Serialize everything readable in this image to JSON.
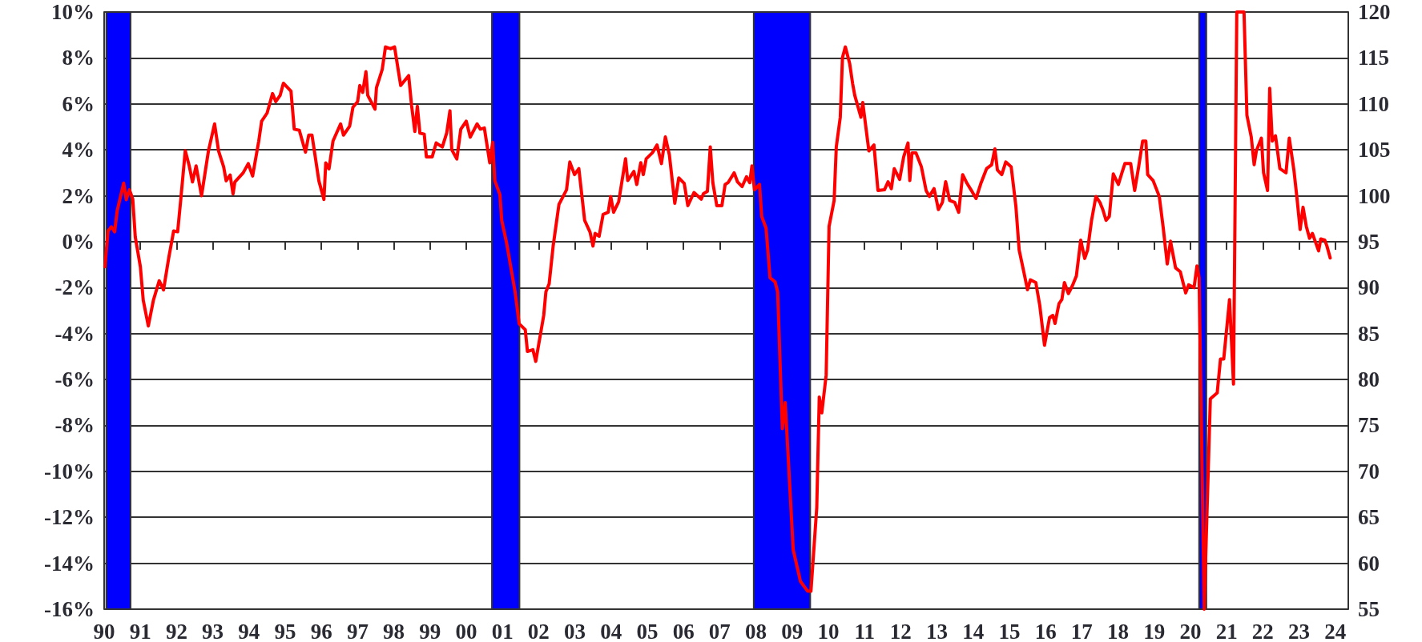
{
  "chart_data": {
    "type": "line",
    "xlim": [
      1990,
      2024.36
    ],
    "xticks": [
      {
        "value": 1990,
        "label": "90"
      },
      {
        "value": 1991,
        "label": "91"
      },
      {
        "value": 1992,
        "label": "92"
      },
      {
        "value": 1993,
        "label": "93"
      },
      {
        "value": 1994,
        "label": "94"
      },
      {
        "value": 1995,
        "label": "95"
      },
      {
        "value": 1996,
        "label": "96"
      },
      {
        "value": 1997,
        "label": "97"
      },
      {
        "value": 1998,
        "label": "98"
      },
      {
        "value": 1999,
        "label": "99"
      },
      {
        "value": 2000,
        "label": "00"
      },
      {
        "value": 2001,
        "label": "01"
      },
      {
        "value": 2002,
        "label": "02"
      },
      {
        "value": 2003,
        "label": "03"
      },
      {
        "value": 2004,
        "label": "04"
      },
      {
        "value": 2005,
        "label": "05"
      },
      {
        "value": 2006,
        "label": "06"
      },
      {
        "value": 2007,
        "label": "07"
      },
      {
        "value": 2008,
        "label": "08"
      },
      {
        "value": 2009,
        "label": "09"
      },
      {
        "value": 2010,
        "label": "10"
      },
      {
        "value": 2011,
        "label": "11"
      },
      {
        "value": 2012,
        "label": "12"
      },
      {
        "value": 2013,
        "label": "13"
      },
      {
        "value": 2014,
        "label": "14"
      },
      {
        "value": 2015,
        "label": "15"
      },
      {
        "value": 2016,
        "label": "16"
      },
      {
        "value": 2017,
        "label": "17"
      },
      {
        "value": 2018,
        "label": "18"
      },
      {
        "value": 2019,
        "label": "19"
      },
      {
        "value": 2020,
        "label": "20"
      },
      {
        "value": 2021,
        "label": "21"
      },
      {
        "value": 2022,
        "label": "22"
      },
      {
        "value": 2023,
        "label": "23"
      },
      {
        "value": 2024,
        "label": "24"
      }
    ],
    "ylim": [
      -16,
      10
    ],
    "yticks": [
      {
        "value": -16,
        "label": "-16%"
      },
      {
        "value": -14,
        "label": "-14%"
      },
      {
        "value": -12,
        "label": "-12%"
      },
      {
        "value": -10,
        "label": "-10%"
      },
      {
        "value": -8,
        "label": "-8%"
      },
      {
        "value": -6,
        "label": "-6%"
      },
      {
        "value": -4,
        "label": "-4%"
      },
      {
        "value": -2,
        "label": "-2%"
      },
      {
        "value": 0,
        "label": "0%"
      },
      {
        "value": 2,
        "label": "2%"
      },
      {
        "value": 4,
        "label": "4%"
      },
      {
        "value": 6,
        "label": "6%"
      },
      {
        "value": 8,
        "label": "8%"
      },
      {
        "value": 10,
        "label": "10%"
      }
    ],
    "y2lim": [
      55,
      120
    ],
    "y2ticks": [
      55,
      60,
      65,
      70,
      75,
      80,
      85,
      90,
      95,
      100,
      105,
      110,
      115,
      120
    ],
    "grid": "y",
    "line_style": "solid",
    "bands": [
      {
        "axis": "x",
        "from": 1990.06,
        "to": 1990.73,
        "color": "#0000ff"
      },
      {
        "axis": "x",
        "from": 2000.71,
        "to": 2001.47,
        "color": "#0000ff"
      },
      {
        "axis": "x",
        "from": 2007.94,
        "to": 2009.5,
        "color": "#0000ff"
      },
      {
        "axis": "x",
        "from": 2020.24,
        "to": 2020.44,
        "color": "#0000ff"
      }
    ],
    "series": [
      {
        "color": "#ff0000",
        "x": [
          1990.02,
          1990.11,
          1990.2,
          1990.29,
          1990.36,
          1990.54,
          1990.61,
          1990.7,
          1990.79,
          1990.86,
          1991.0,
          1991.08,
          1991.22,
          1991.36,
          1991.52,
          1991.64,
          1991.78,
          1991.92,
          1992.03,
          1992.12,
          1992.24,
          1992.35,
          1992.44,
          1992.54,
          1992.69,
          1992.88,
          1993.05,
          1993.16,
          1993.3,
          1993.37,
          1993.48,
          1993.56,
          1993.61,
          1993.84,
          1993.98,
          1994.1,
          1994.27,
          1994.35,
          1994.5,
          1994.65,
          1994.74,
          1994.86,
          1994.95,
          1995.16,
          1995.25,
          1995.39,
          1995.56,
          1995.65,
          1995.74,
          1995.93,
          1996.07,
          1996.12,
          1996.21,
          1996.32,
          1996.53,
          1996.61,
          1996.78,
          1996.87,
          1997.0,
          1997.06,
          1997.14,
          1997.23,
          1997.28,
          1997.48,
          1997.52,
          1997.68,
          1997.77,
          1997.91,
          1998.02,
          1998.19,
          1998.41,
          1998.49,
          1998.58,
          1998.65,
          1998.72,
          1998.84,
          1998.9,
          1999.06,
          1999.17,
          1999.34,
          1999.46,
          1999.55,
          1999.6,
          1999.74,
          1999.85,
          2000.0,
          2000.11,
          2000.3,
          2000.39,
          2000.5,
          2000.65,
          2000.73,
          2000.79,
          2000.93,
          2000.98,
          2001.12,
          2001.35,
          2001.46,
          2001.63,
          2001.69,
          2001.84,
          2001.92,
          2002.14,
          2002.2,
          2002.29,
          2002.4,
          2002.56,
          2002.77,
          2002.86,
          2002.99,
          2003.11,
          2003.27,
          2003.42,
          2003.5,
          2003.56,
          2003.67,
          2003.78,
          2003.92,
          2003.99,
          2004.07,
          2004.21,
          2004.4,
          2004.46,
          2004.63,
          2004.71,
          2004.82,
          2004.89,
          2004.97,
          2005.14,
          2005.27,
          2005.39,
          2005.5,
          2005.61,
          2005.76,
          2005.87,
          2006.02,
          2006.12,
          2006.29,
          2006.49,
          2006.55,
          2006.66,
          2006.74,
          2006.81,
          2006.92,
          2007.06,
          2007.15,
          2007.23,
          2007.4,
          2007.49,
          2007.62,
          2007.74,
          2007.83,
          2007.89,
          2007.96,
          2008.1,
          2008.16,
          2008.28,
          2008.39,
          2008.53,
          2008.6,
          2008.73,
          2008.81,
          2009.03,
          2009.23,
          2009.43,
          2009.52,
          2009.68,
          2009.75,
          2009.82,
          2009.94,
          2010.02,
          2010.16,
          2010.22,
          2010.33,
          2010.39,
          2010.47,
          2010.59,
          2010.67,
          2010.73,
          2010.9,
          2010.95,
          2011.12,
          2011.26,
          2011.37,
          2011.55,
          2011.65,
          2011.74,
          2011.82,
          2011.97,
          2012.08,
          2012.2,
          2012.25,
          2012.31,
          2012.42,
          2012.57,
          2012.7,
          2012.79,
          2012.92,
          2013.04,
          2013.15,
          2013.24,
          2013.35,
          2013.49,
          2013.6,
          2013.71,
          2013.83,
          2013.94,
          2014.08,
          2014.22,
          2014.37,
          2014.51,
          2014.6,
          2014.67,
          2014.79,
          2014.9,
          2015.05,
          2015.18,
          2015.27,
          2015.41,
          2015.5,
          2015.58,
          2015.73,
          2015.84,
          2015.97,
          2016.11,
          2016.2,
          2016.26,
          2016.37,
          2016.45,
          2016.52,
          2016.63,
          2016.74,
          2016.85,
          2016.97,
          2017.08,
          2017.16,
          2017.27,
          2017.39,
          2017.5,
          2017.58,
          2017.67,
          2017.76,
          2017.87,
          2018.01,
          2018.12,
          2018.19,
          2018.35,
          2018.46,
          2018.57,
          2018.68,
          2018.77,
          2018.82,
          2018.97,
          2019.14,
          2019.25,
          2019.36,
          2019.45,
          2019.59,
          2019.72,
          2019.87,
          2019.95,
          2020.1,
          2020.18,
          2020.24,
          2020.3,
          2020.38,
          2020.55,
          2020.74,
          2020.83,
          2020.92,
          2021.08,
          2021.19,
          2021.28,
          2021.48,
          2021.56,
          2021.68,
          2021.76,
          2021.82,
          2021.96,
          2022.02,
          2022.13,
          2022.19,
          2022.26,
          2022.35,
          2022.47,
          2022.64,
          2022.73,
          2022.86,
          2022.95,
          2023.03,
          2023.11,
          2023.2,
          2023.29,
          2023.37,
          2023.54,
          2023.6,
          2023.71,
          2023.77,
          2023.86
        ],
        "values": [
          -1.09,
          0.47,
          0.65,
          0.43,
          1.35,
          2.55,
          1.83,
          2.26,
          1.86,
          0.2,
          -1.09,
          -2.55,
          -3.67,
          -2.55,
          -1.7,
          -2.1,
          -0.74,
          0.47,
          0.43,
          1.9,
          3.96,
          3.3,
          2.6,
          3.3,
          2.0,
          3.95,
          5.13,
          3.95,
          3.26,
          2.65,
          2.9,
          2.08,
          2.6,
          3.0,
          3.4,
          2.86,
          4.38,
          5.25,
          5.6,
          6.45,
          6.1,
          6.37,
          6.9,
          6.55,
          4.9,
          4.85,
          3.9,
          4.64,
          4.64,
          2.65,
          1.84,
          3.43,
          3.17,
          4.38,
          5.13,
          4.64,
          5.03,
          5.85,
          6.1,
          6.8,
          6.5,
          7.4,
          6.37,
          5.77,
          6.7,
          7.5,
          8.48,
          8.4,
          8.48,
          6.8,
          7.23,
          5.94,
          4.8,
          5.9,
          4.73,
          4.68,
          3.69,
          3.69,
          4.3,
          4.12,
          4.73,
          5.7,
          4.0,
          3.6,
          4.9,
          5.25,
          4.55,
          5.13,
          4.9,
          4.95,
          3.43,
          4.33,
          2.65,
          2.05,
          0.93,
          -0.1,
          -2.19,
          -3.57,
          -3.83,
          -4.78,
          -4.7,
          -5.21,
          -3.21,
          -2.18,
          -1.83,
          -0.19,
          1.62,
          2.26,
          3.47,
          2.92,
          3.18,
          0.93,
          0.41,
          -0.19,
          0.36,
          0.24,
          1.19,
          1.28,
          1.97,
          1.28,
          1.74,
          3.61,
          2.66,
          3.06,
          2.49,
          3.44,
          2.92,
          3.61,
          3.87,
          4.21,
          3.4,
          4.56,
          3.78,
          1.67,
          2.78,
          2.54,
          1.57,
          2.14,
          1.85,
          2.09,
          2.19,
          4.13,
          2.57,
          1.57,
          1.57,
          2.49,
          2.57,
          3.0,
          2.61,
          2.4,
          2.83,
          2.57,
          3.3,
          2.26,
          2.49,
          1.1,
          0.59,
          -1.57,
          -1.75,
          -2.18,
          -8.14,
          -7.01,
          -13.41,
          -14.79,
          -15.22,
          -15.22,
          -11.59,
          -6.76,
          -7.45,
          -5.81,
          0.66,
          1.79,
          4.13,
          5.42,
          8.01,
          8.48,
          7.75,
          6.89,
          6.37,
          5.42,
          6.06,
          3.95,
          4.21,
          2.23,
          2.26,
          2.61,
          2.31,
          3.18,
          2.71,
          3.69,
          4.3,
          2.66,
          3.87,
          3.87,
          3.26,
          2.23,
          1.97,
          2.31,
          1.4,
          1.71,
          2.61,
          1.8,
          1.71,
          1.28,
          2.92,
          2.54,
          2.26,
          1.88,
          2.57,
          3.18,
          3.35,
          4.04,
          3.12,
          2.92,
          3.47,
          3.26,
          1.54,
          -0.36,
          -1.4,
          -2.09,
          -1.66,
          -1.78,
          -2.78,
          -4.51,
          -3.3,
          -3.21,
          -3.56,
          -2.7,
          -2.52,
          -1.78,
          -2.26,
          -1.92,
          -1.49,
          0.07,
          -0.73,
          -0.36,
          0.93,
          1.97,
          1.71,
          1.4,
          0.93,
          1.1,
          2.95,
          2.49,
          3.06,
          3.4,
          3.4,
          2.23,
          3.26,
          4.38,
          4.38,
          2.92,
          2.66,
          1.97,
          0.59,
          -0.97,
          0.02,
          -1.14,
          -1.31,
          -2.23,
          -1.88,
          -2.0,
          -1.06,
          -1.57,
          -7.62,
          -16,
          -6.84,
          -6.58,
          -5.11,
          -5.11,
          -2.52,
          -6.2,
          10,
          10,
          5.51,
          4.56,
          3.35,
          3.95,
          4.51,
          3.0,
          2.23,
          6.68,
          4.38,
          4.61,
          3.18,
          3.0,
          4.51,
          3.09,
          1.79,
          0.53,
          1.5,
          0.67,
          0.15,
          0.36,
          -0.4,
          0.12,
          0.07,
          -0.19,
          -0.71
        ]
      }
    ]
  }
}
